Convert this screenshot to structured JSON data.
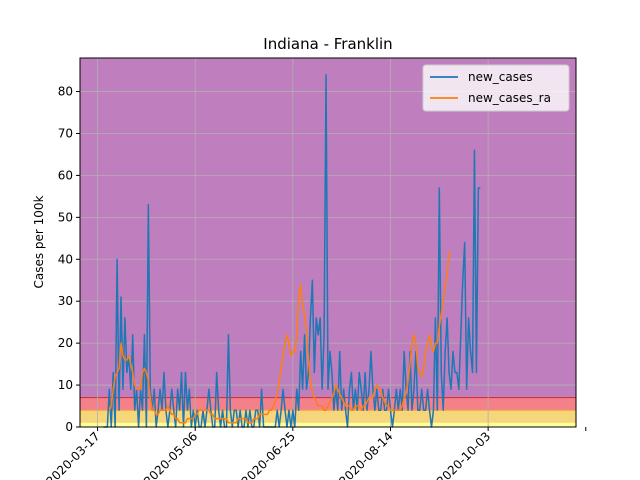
{
  "chart_data": {
    "type": "line",
    "title": "Indiana - Franklin",
    "xlabel": "",
    "ylabel": "Cases per 100k",
    "x_range": [
      "2020-03-08",
      "2020-11-17"
    ],
    "ylim": [
      0,
      88
    ],
    "grid": true,
    "legend_position": "top-right",
    "x_ticks": [
      "2020-03-17",
      "2020-05-06",
      "2020-06-25",
      "2020-08-14",
      "2020-10-03",
      ""
    ],
    "x_tick_dates": [
      "2020-03-17",
      "2020-05-06",
      "2020-06-25",
      "2020-08-14",
      "2020-10-03",
      "2020-11-22"
    ],
    "y_ticks": [
      0,
      10,
      20,
      30,
      40,
      50,
      60,
      70,
      80
    ],
    "bands": [
      {
        "from": 0,
        "to": 1,
        "color": "#ffff99"
      },
      {
        "from": 1,
        "to": 4,
        "color": "#f5d67a"
      },
      {
        "from": 4,
        "to": 7,
        "color": "#f4818a"
      },
      {
        "from": 7,
        "to": 88,
        "color": "#bf7fbf"
      }
    ],
    "series": [
      {
        "name": "new_cases",
        "color": "#1f77b4",
        "start_date": "2020-03-20",
        "values": [
          0,
          0,
          0,
          9,
          0,
          13,
          0,
          40,
          4,
          31,
          9,
          26,
          13,
          17,
          9,
          22,
          4,
          9,
          0,
          9,
          4,
          22,
          0,
          53,
          9,
          4,
          9,
          0,
          4,
          9,
          4,
          13,
          4,
          0,
          4,
          9,
          4,
          0,
          9,
          4,
          13,
          0,
          13,
          4,
          9,
          0,
          4,
          0,
          4,
          0,
          0,
          4,
          0,
          4,
          9,
          4,
          0,
          0,
          13,
          4,
          0,
          4,
          0,
          0,
          22,
          4,
          0,
          4,
          4,
          0,
          4,
          0,
          0,
          4,
          0,
          4,
          0,
          0,
          4,
          4,
          0,
          9,
          0,
          0,
          0,
          0,
          0,
          0,
          0,
          4,
          0,
          4,
          9,
          4,
          0,
          4,
          0,
          4,
          0,
          9,
          4,
          18,
          9,
          22,
          9,
          13,
          26,
          35,
          13,
          26,
          22,
          26,
          9,
          22,
          84,
          9,
          18,
          13,
          4,
          9,
          4,
          18,
          4,
          9,
          4,
          0,
          9,
          13,
          4,
          9,
          4,
          13,
          9,
          4,
          13,
          4,
          9,
          18,
          9,
          4,
          9,
          4,
          4,
          9,
          4,
          4,
          9,
          4,
          0,
          4,
          9,
          4,
          9,
          4,
          18,
          9,
          4,
          18,
          4,
          9,
          18,
          4,
          4,
          9,
          4,
          4,
          9,
          4,
          0,
          4,
          26,
          4,
          57,
          13,
          4,
          18,
          26,
          13,
          9,
          18,
          13,
          13,
          9,
          22,
          35,
          44,
          9,
          26,
          18,
          13,
          66,
          13,
          57,
          57
        ]
      },
      {
        "name": "new_cases_ra",
        "color": "#ff7f0e",
        "start_date": "2020-03-23",
        "values": [
          4,
          5,
          9,
          12,
          13,
          14,
          20,
          17,
          16,
          16,
          17,
          15,
          13,
          10,
          9,
          9,
          9,
          13,
          14,
          13,
          11,
          7,
          4,
          4,
          3,
          3,
          4,
          4,
          4,
          4,
          5,
          4,
          3,
          3,
          2,
          2,
          1,
          1,
          1,
          1,
          2,
          2,
          2,
          2,
          3,
          3,
          4,
          4,
          4,
          4,
          4,
          4,
          3,
          3,
          2,
          2,
          2,
          2,
          2,
          2,
          2,
          1,
          1,
          1,
          1,
          1,
          2,
          2,
          2,
          2,
          2,
          1,
          1,
          1,
          2,
          2,
          2,
          3,
          3,
          3,
          3,
          3,
          4,
          4,
          5,
          6,
          8,
          11,
          14,
          17,
          20,
          22,
          20,
          17,
          18,
          18,
          22,
          31,
          34,
          29,
          27,
          23,
          16,
          11,
          8,
          7,
          6,
          5,
          5,
          5,
          4,
          4,
          5,
          6,
          7,
          8,
          10,
          9,
          8,
          7,
          6,
          5,
          5,
          5,
          4,
          4,
          5,
          5,
          5,
          4,
          5,
          5,
          6,
          7,
          7,
          7,
          9,
          10,
          9,
          9,
          7,
          6,
          5,
          5,
          4,
          4,
          4,
          4,
          4,
          4,
          5,
          7,
          8,
          11,
          15,
          20,
          22,
          20,
          14,
          13,
          12,
          14,
          18,
          20,
          22,
          19,
          18,
          20,
          20,
          24,
          27,
          30,
          34,
          36,
          42
        ]
      }
    ]
  }
}
